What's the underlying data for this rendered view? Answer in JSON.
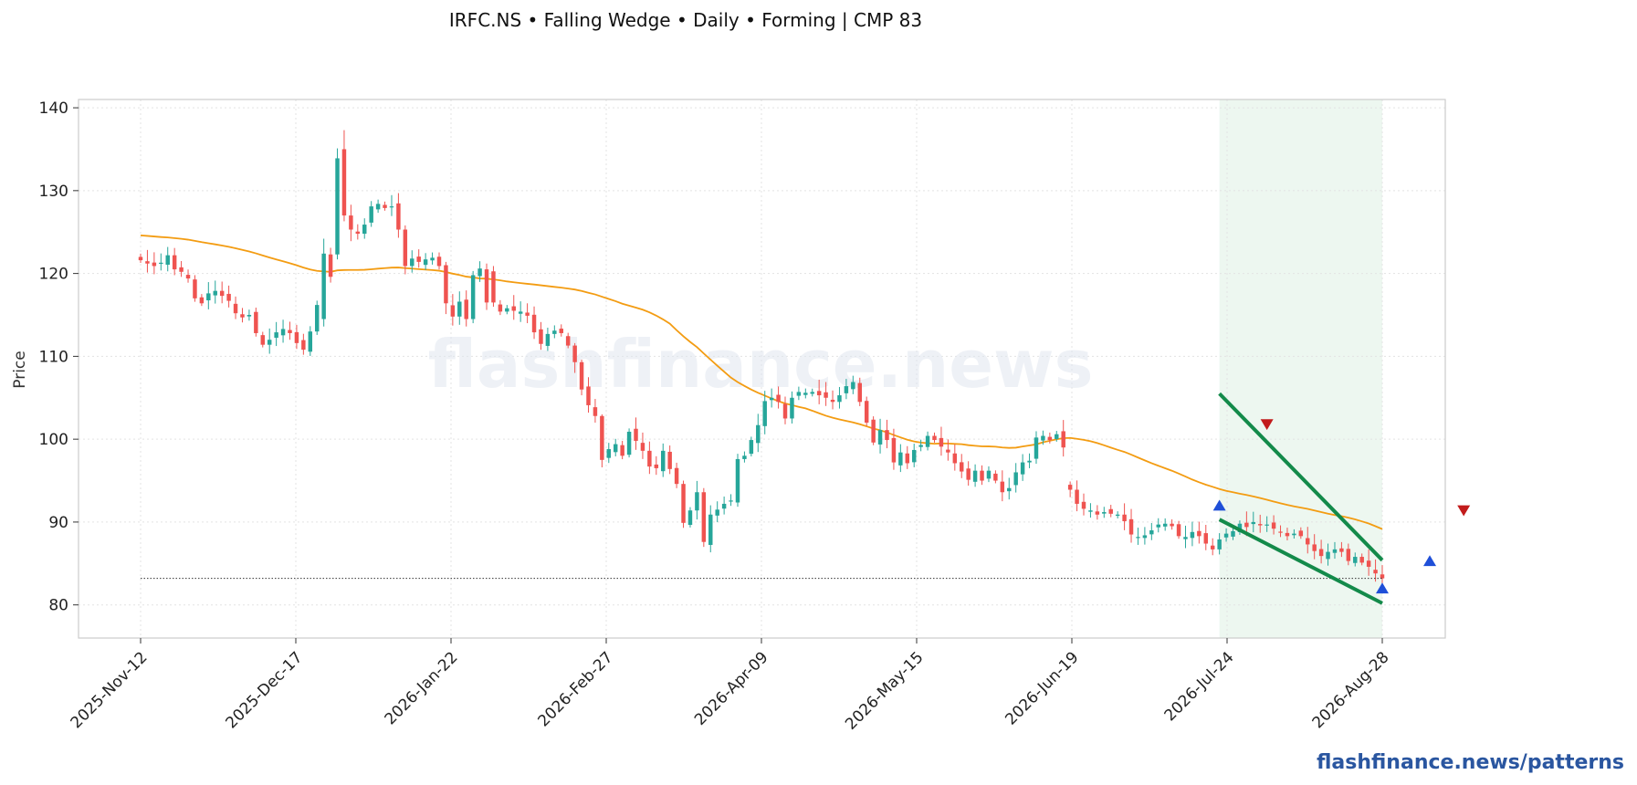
{
  "chart_data": {
    "type": "candlestick",
    "title": "IRFC.NS  •  Falling Wedge  •  Daily  •  Forming  |  CMP 83",
    "ylabel": "Price",
    "xlabel": "",
    "ylim": [
      76,
      141
    ],
    "y_ticks": [
      80,
      90,
      100,
      110,
      120,
      130,
      140
    ],
    "x_tick_labels": [
      "2025-Nov-12",
      "2025-Dec-17",
      "2026-Jan-22",
      "2026-Feb-27",
      "2026-Apr-09",
      "2026-May-15",
      "2026-Jun-19",
      "2026-Jul-24",
      "2026-Aug-28"
    ],
    "grid": true,
    "watermark": "flashfinance.news",
    "footer": "flashfinance.news/patterns",
    "cmp": 83.2,
    "colors": {
      "up": "#26a69a",
      "down": "#ef5350",
      "ma": "#f39c12",
      "trend": "#138a4a",
      "highlight": "#e8f5ec",
      "marker_up": "#1f4fd8",
      "marker_down": "#c21b1b"
    },
    "closes": [
      121.6,
      121.2,
      120.9,
      121.3,
      122.2,
      120.5,
      120.2,
      119.4,
      117.0,
      116.4,
      117.6,
      117.9,
      117.3,
      116.7,
      115.2,
      114.7,
      115.0,
      112.8,
      111.4,
      112.0,
      112.9,
      113.3,
      112.8,
      111.6,
      110.8,
      113.0,
      116.2,
      121.4,
      122.3,
      133.9,
      127.0,
      125.3,
      124.8,
      125.9,
      128.1,
      128.4,
      127.9,
      128.1,
      125.3,
      120.9,
      121.8,
      121.4,
      121.7,
      121.9,
      120.9,
      116.4,
      114.8,
      116.6,
      114.5,
      119.8,
      120.6,
      119.9,
      116.5,
      115.4,
      115.8,
      115.5,
      115.4,
      114.9,
      112.9,
      111.5,
      112.7,
      113.1,
      112.8,
      111.3,
      109.3,
      106.0,
      104.1,
      102.8,
      97.5,
      98.8,
      99.4,
      98.0,
      100.9,
      99.8,
      98.6,
      96.7,
      96.5,
      98.6,
      96.4,
      94.6,
      89.9,
      91.4,
      93.6,
      87.6,
      90.9,
      91.5,
      92.2,
      92.6,
      97.6,
      98.0,
      99.9,
      101.7,
      104.6,
      105.0,
      104.5,
      102.5,
      105.0,
      105.7,
      105.6,
      105.7,
      105.3,
      105.0,
      104.5,
      105.3,
      106.4,
      106.9,
      104.5,
      102.0,
      99.6,
      101.1,
      99.9,
      97.2,
      98.4,
      97.1,
      98.7,
      99.3,
      100.4,
      99.9,
      99.1,
      98.4,
      97.1,
      96.1,
      95.1,
      96.2,
      95.0,
      96.2,
      95.0,
      93.6,
      94.1,
      96.0,
      97.2,
      97.4,
      100.2,
      100.4,
      99.9,
      100.6,
      99.0,
      93.9,
      92.2,
      91.6,
      91.4,
      90.9,
      91.2,
      91.0,
      90.9,
      90.1,
      88.5,
      88.2,
      88.4,
      89.0,
      89.7,
      89.8,
      89.5,
      88.3,
      88.2,
      88.8,
      88.3,
      87.4,
      86.7,
      87.9,
      88.6,
      88.9,
      89.8,
      89.4,
      90.0,
      89.6,
      89.7,
      89.2,
      88.8,
      88.3,
      88.6,
      88.3,
      87.3,
      86.5,
      85.9,
      86.4,
      86.7,
      86.4,
      85.3,
      85.8,
      85.1,
      84.6,
      83.8,
      83.2
    ]
  }
}
